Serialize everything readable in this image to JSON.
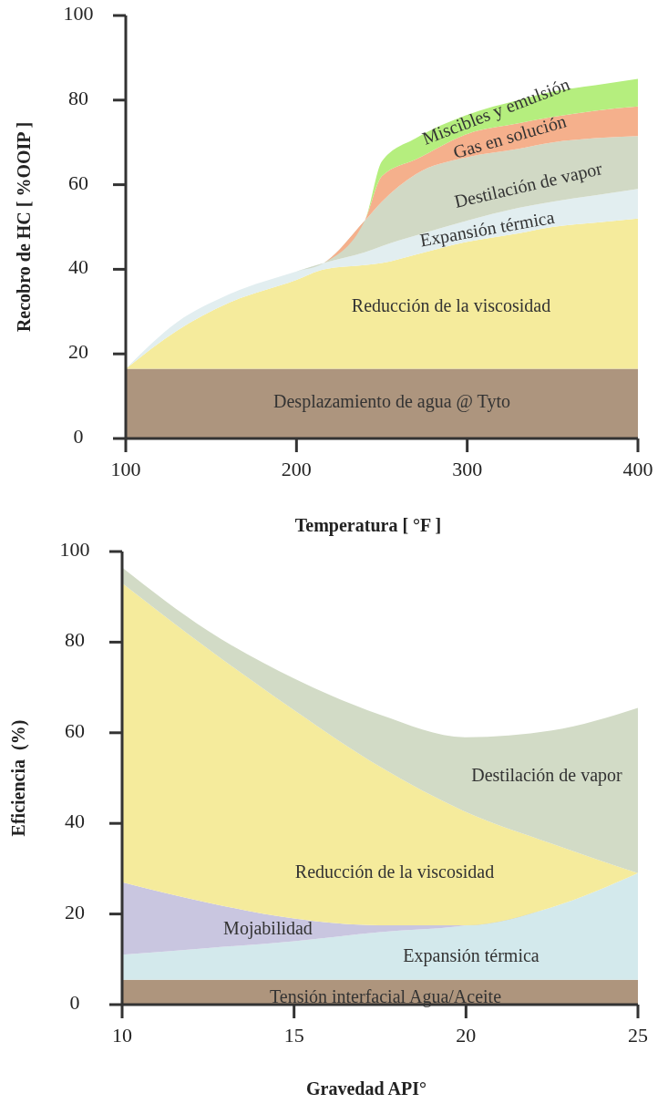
{
  "chart_data": [
    {
      "type": "area",
      "stacked": true,
      "xlabel": "Temperatura [ °F ]",
      "ylabel": "Recobro de HC [ %OOIP ]",
      "xlim": [
        100,
        400
      ],
      "ylim": [
        0,
        100
      ],
      "xticks": [
        100,
        200,
        300,
        400
      ],
      "yticks": [
        0,
        20,
        40,
        60,
        80,
        100
      ],
      "x": [
        100,
        130,
        160,
        200,
        216,
        240,
        250,
        270,
        300,
        330,
        350,
        375,
        400
      ],
      "series": [
        {
          "name": "Desplazamiento de agua @ Tyto",
          "color": "#ad957e",
          "values": [
            16.5,
            16.5,
            16.5,
            16.5,
            16.5,
            16.5,
            16.5,
            16.5,
            16.5,
            16.5,
            16.5,
            16.5,
            16.5
          ]
        },
        {
          "name": "Reducción de la viscosidad",
          "color": "#f5eb9c",
          "values": [
            0,
            9,
            15.5,
            21,
            23.5,
            24.5,
            25,
            27,
            30,
            32,
            33.5,
            34.5,
            35.5
          ]
        },
        {
          "name": "Expansión térmica",
          "color": "#e2eef0",
          "values": [
            0,
            2,
            2,
            2,
            1.5,
            3,
            4,
            4.5,
            5,
            6,
            6,
            6.5,
            7
          ]
        },
        {
          "name": "Destilación de vapor",
          "color": "#d1d9c5",
          "values": [
            0,
            0,
            0,
            0,
            0,
            7.5,
            10.5,
            14.5,
            15,
            14,
            14,
            13.5,
            12.5
          ]
        },
        {
          "name": "Gas en solución",
          "color": "#f5b08c",
          "values": [
            0,
            0,
            0,
            0,
            0,
            0,
            6,
            3.5,
            5.5,
            6,
            6,
            6.5,
            7
          ]
        },
        {
          "name": "Miscibles y emulsión",
          "color": "#b5ee7e",
          "values": [
            0,
            0,
            0,
            0,
            0,
            0,
            3.5,
            5,
            4.5,
            5.5,
            6,
            6,
            6.5
          ]
        }
      ]
    },
    {
      "type": "area",
      "stacked": true,
      "xlabel": "Gravedad API°",
      "ylabel": "Eficiencia  (%)",
      "xlim": [
        10,
        25
      ],
      "ylim": [
        0,
        100
      ],
      "xticks": [
        10,
        15,
        20,
        25
      ],
      "yticks": [
        0,
        20,
        40,
        60,
        80,
        100
      ],
      "x": [
        10,
        12.5,
        15,
        17.5,
        20,
        22.5,
        25
      ],
      "series": [
        {
          "name": "Tensión interfacial Agua/Aceite",
          "color": "#ae957d",
          "values": [
            5.5,
            5.5,
            5.5,
            5.5,
            5.5,
            5.5,
            5.5
          ]
        },
        {
          "name": "Expansión térmica",
          "color": "#d3e9ec",
          "values": [
            5.5,
            7,
            8.5,
            10.5,
            12,
            16,
            23.5
          ]
        },
        {
          "name": "Mojabilidad",
          "color": "#c9c6e0",
          "values": [
            16,
            10,
            5,
            1.5,
            0,
            0,
            0
          ]
        },
        {
          "name": "Reducción de la viscosidad",
          "color": "#f5eb9c",
          "values": [
            66,
            56,
            46,
            35,
            25,
            14,
            0
          ]
        },
        {
          "name": "Destilación de vapor",
          "color": "#d2dbc6",
          "values": [
            3.5,
            4,
            7,
            11.5,
            16.5,
            25,
            36.5
          ]
        }
      ]
    }
  ]
}
